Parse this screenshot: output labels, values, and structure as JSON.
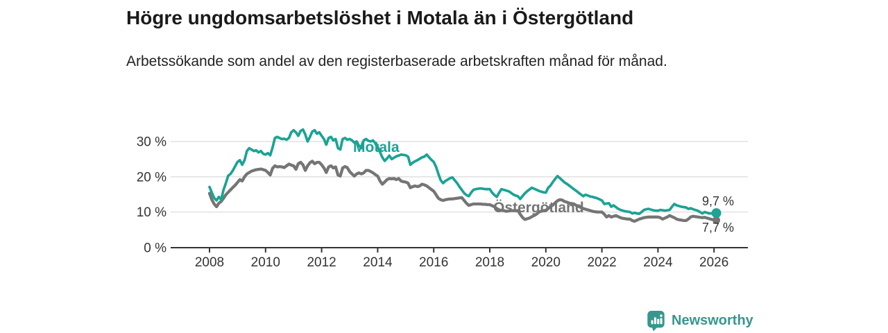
{
  "header": {
    "title": "Högre ungdomsarbetslöshet i Motala än i Östergötland",
    "subtitle": "Arbetssökande som andel av den registerbaserade arbetskraften månad för månad."
  },
  "chart_data": {
    "type": "line",
    "unit": "%",
    "x_start_year": 2008,
    "x_points_per_year": 12,
    "x_ticks": [
      2008,
      2010,
      2012,
      2014,
      2016,
      2018,
      2020,
      2022,
      2024,
      2026
    ],
    "y_ticks": [
      0,
      10,
      20,
      30
    ],
    "y_tick_labels": [
      "0 %",
      "10 %",
      "20 %",
      "30 %"
    ],
    "xlim": [
      2007.9,
      2027.2
    ],
    "ylim": [
      0,
      35
    ],
    "grid": "horizontal",
    "legend_position": "inline-labels",
    "series": [
      {
        "name": "Motala",
        "color": "#1ba394",
        "end_label": "9,7 %",
        "end_value": 9.7,
        "values": [
          17.1,
          15.5,
          14.0,
          13.3,
          14.3,
          13.5,
          16.3,
          18.2,
          20.3,
          20.8,
          21.8,
          23.0,
          24.2,
          24.7,
          23.4,
          24.7,
          27.3,
          28.1,
          27.7,
          27.3,
          27.5,
          26.9,
          27.3,
          26.5,
          26.3,
          26.7,
          26.1,
          28.3,
          31.0,
          31.3,
          31.0,
          30.7,
          30.8,
          30.5,
          31.0,
          32.6,
          33.2,
          32.6,
          31.6,
          33.0,
          33.4,
          32.0,
          30.0,
          31.3,
          32.8,
          33.2,
          32.2,
          32.6,
          31.6,
          30.7,
          29.1,
          31.0,
          31.3,
          30.3,
          30.7,
          28.1,
          27.7,
          30.7,
          31.0,
          30.5,
          30.7,
          30.3,
          29.7,
          30.0,
          28.8,
          28.1,
          30.3,
          30.7,
          30.2,
          30.0,
          30.3,
          29.5,
          28.5,
          27.0,
          25.5,
          24.5,
          25.2,
          26.0,
          25.0,
          25.4,
          25.8,
          26.0,
          26.3,
          26.2,
          26.1,
          25.7,
          23.4,
          24.0,
          24.4,
          24.7,
          25.1,
          25.5,
          25.7,
          26.3,
          25.5,
          24.8,
          24.2,
          22.8,
          20.8,
          19.0,
          18.2,
          18.8,
          19.2,
          19.6,
          19.8,
          19.0,
          18.2,
          17.2,
          16.3,
          15.4,
          14.8,
          14.5,
          15.5,
          16.3,
          16.5,
          16.6,
          16.7,
          16.6,
          16.5,
          16.5,
          16.5,
          15.5,
          14.8,
          14.3,
          15.5,
          16.5,
          16.3,
          16.1,
          15.9,
          15.5,
          15.0,
          14.7,
          14.5,
          13.7,
          14.5,
          15.3,
          15.9,
          16.4,
          16.9,
          16.6,
          16.3,
          16.0,
          15.8,
          15.6,
          15.5,
          16.9,
          17.5,
          18.5,
          19.4,
          20.2,
          19.6,
          19.0,
          18.4,
          18.0,
          17.5,
          17.0,
          16.5,
          16.0,
          15.5,
          15.0,
          14.5,
          14.9,
          14.7,
          14.4,
          14.3,
          14.1,
          13.9,
          13.6,
          13.3,
          12.3,
          12.4,
          12.5,
          11.5,
          11.9,
          11.4,
          10.9,
          10.6,
          10.4,
          10.2,
          10.1,
          10.0,
          9.6,
          9.8,
          9.6,
          9.5,
          10.0,
          10.6,
          10.8,
          10.9,
          10.7,
          10.5,
          10.4,
          10.4,
          10.6,
          10.5,
          10.4,
          10.5,
          10.6,
          11.5,
          12.3,
          11.9,
          11.7,
          11.5,
          11.4,
          11.3,
          10.9,
          11.1,
          10.8,
          10.6,
          10.4,
          10.0,
          9.6,
          10.0,
          9.8,
          9.6,
          9.6,
          9.6,
          9.7
        ]
      },
      {
        "name": "Östergötland",
        "color": "#757575",
        "end_label": "7,7 %",
        "end_value": 7.7,
        "values": [
          15.3,
          13.5,
          12.3,
          11.5,
          12.5,
          13.0,
          13.9,
          14.9,
          15.6,
          16.3,
          17.0,
          17.6,
          18.4,
          19.2,
          18.8,
          20.0,
          20.8,
          21.2,
          21.6,
          21.8,
          22.0,
          22.1,
          22.2,
          22.0,
          21.8,
          21.2,
          20.5,
          22.4,
          23.1,
          22.8,
          22.9,
          22.8,
          22.6,
          23.1,
          23.6,
          23.3,
          23.1,
          22.1,
          23.7,
          24.1,
          23.4,
          21.8,
          23.1,
          24.0,
          24.4,
          23.7,
          24.1,
          24.1,
          23.4,
          22.5,
          21.2,
          22.8,
          23.1,
          22.5,
          22.8,
          20.5,
          20.2,
          22.5,
          22.9,
          22.6,
          21.5,
          20.8,
          20.2,
          20.8,
          21.1,
          20.8,
          21.1,
          21.8,
          21.8,
          21.5,
          21.1,
          20.6,
          20.2,
          18.8,
          17.9,
          18.5,
          19.2,
          19.5,
          19.4,
          19.5,
          19.2,
          19.5,
          18.8,
          18.6,
          18.5,
          18.2,
          16.9,
          17.2,
          17.4,
          17.2,
          17.4,
          17.9,
          17.7,
          17.4,
          16.9,
          16.4,
          15.9,
          14.9,
          13.9,
          13.5,
          13.3,
          13.5,
          13.6,
          13.7,
          13.7,
          13.8,
          13.9,
          14.0,
          14.1,
          13.3,
          12.5,
          11.9,
          12.1,
          12.3,
          12.3,
          12.3,
          12.3,
          12.2,
          12.2,
          12.1,
          12.1,
          11.8,
          11.5,
          11.0,
          10.6,
          10.5,
          10.4,
          10.2,
          10.3,
          10.4,
          10.4,
          10.4,
          10.4,
          9.4,
          8.5,
          7.9,
          8.1,
          8.3,
          8.7,
          9.0,
          9.4,
          10.0,
          10.2,
          10.4,
          10.5,
          11.0,
          11.5,
          12.0,
          12.6,
          13.2,
          13.5,
          13.4,
          13.0,
          12.8,
          12.5,
          12.4,
          12.3,
          11.9,
          11.6,
          11.3,
          11.0,
          10.8,
          10.6,
          10.4,
          10.2,
          10.1,
          10.0,
          10.0,
          10.0,
          9.4,
          8.6,
          9.0,
          8.6,
          8.8,
          9.0,
          8.7,
          8.4,
          8.2,
          8.1,
          8.0,
          8.0,
          7.6,
          7.4,
          7.7,
          8.0,
          8.2,
          8.4,
          8.5,
          8.6,
          8.6,
          8.6,
          8.6,
          8.6,
          8.4,
          8.0,
          8.3,
          8.6,
          9.0,
          8.7,
          8.4,
          8.0,
          7.8,
          7.7,
          7.6,
          7.6,
          8.0,
          8.6,
          8.8,
          8.7,
          8.6,
          8.5,
          8.4,
          8.5,
          8.3,
          8.1,
          7.9,
          7.8,
          7.7
        ]
      }
    ]
  },
  "footer": {
    "brand": "Newsworthy"
  },
  "colors": {
    "accent_teal": "#1ba394",
    "line_gray": "#757575",
    "axis": "#333333",
    "grid": "#dddddd",
    "title_text": "#1a1a1a",
    "value_label": "#333333",
    "brand_teal": "#35978d"
  }
}
